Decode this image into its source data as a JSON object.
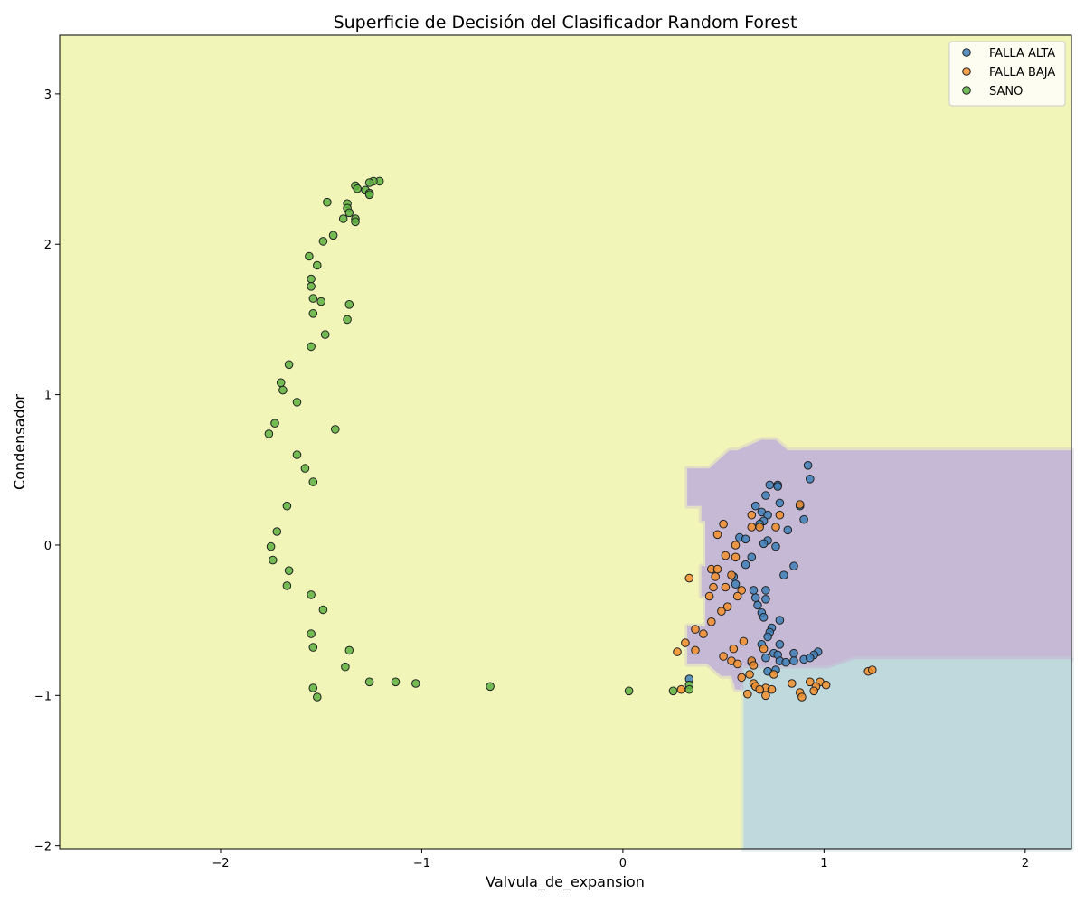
{
  "chart_data": {
    "type": "scatter",
    "title": "Superficie de Decisión del Clasificador Random Forest",
    "xlabel": "Valvula_de_expansion",
    "ylabel": "Condensador",
    "xlim": [
      -2.8,
      2.23
    ],
    "ylim": [
      -2.02,
      3.39
    ],
    "x_ticks": [
      -2,
      -1,
      0,
      1,
      2
    ],
    "y_ticks": [
      -2,
      -1,
      0,
      1,
      2,
      3
    ],
    "grid": false,
    "legend_position": "top-right",
    "background_region": {
      "class": "SANO",
      "color": "#f2f5b8"
    },
    "decision_regions": [
      {
        "class": "FALLA ALTA",
        "color": "#c6b9d6",
        "polygon": [
          [
            0.32,
            0.51
          ],
          [
            0.43,
            0.51
          ],
          [
            0.53,
            0.63
          ],
          [
            0.57,
            0.63
          ],
          [
            0.69,
            0.7
          ],
          [
            0.76,
            0.7
          ],
          [
            0.82,
            0.63
          ],
          [
            2.23,
            0.63
          ],
          [
            2.23,
            -0.76
          ],
          [
            1.15,
            -0.76
          ],
          [
            1.02,
            -0.84
          ],
          [
            0.64,
            -0.84
          ],
          [
            0.6,
            -0.96
          ],
          [
            0.56,
            -0.96
          ],
          [
            0.54,
            -0.87
          ],
          [
            0.49,
            -0.87
          ],
          [
            0.42,
            -0.79
          ],
          [
            0.32,
            -0.79
          ],
          [
            0.32,
            -0.54
          ],
          [
            0.41,
            -0.54
          ],
          [
            0.41,
            -0.34
          ],
          [
            0.39,
            -0.34
          ],
          [
            0.39,
            -0.14
          ],
          [
            0.41,
            -0.14
          ],
          [
            0.41,
            0.16
          ],
          [
            0.39,
            0.16
          ],
          [
            0.39,
            0.26
          ],
          [
            0.32,
            0.26
          ]
        ]
      },
      {
        "class": "FALLA BAJA",
        "color": "#bfd9dd",
        "polygon": [
          [
            0.6,
            -0.82
          ],
          [
            1.02,
            -0.82
          ],
          [
            1.15,
            -0.76
          ],
          [
            2.23,
            -0.76
          ],
          [
            2.23,
            -2.02
          ],
          [
            0.6,
            -2.02
          ]
        ]
      }
    ],
    "series": [
      {
        "name": "FALLA ALTA",
        "color": "#3e7fb8",
        "points": [
          [
            0.92,
            0.53
          ],
          [
            0.93,
            0.44
          ],
          [
            0.73,
            0.4
          ],
          [
            0.77,
            0.4
          ],
          [
            0.77,
            0.39
          ],
          [
            0.71,
            0.33
          ],
          [
            0.66,
            0.26
          ],
          [
            0.78,
            0.28
          ],
          [
            0.88,
            0.26
          ],
          [
            0.69,
            0.22
          ],
          [
            0.72,
            0.2
          ],
          [
            0.7,
            0.16
          ],
          [
            0.9,
            0.17
          ],
          [
            0.68,
            0.14
          ],
          [
            0.82,
            0.1
          ],
          [
            0.58,
            0.05
          ],
          [
            0.61,
            0.04
          ],
          [
            0.72,
            0.03
          ],
          [
            0.7,
            0.01
          ],
          [
            0.76,
            -0.01
          ],
          [
            0.64,
            -0.08
          ],
          [
            0.61,
            -0.13
          ],
          [
            0.85,
            -0.14
          ],
          [
            0.8,
            -0.2
          ],
          [
            0.55,
            -0.21
          ],
          [
            0.56,
            -0.26
          ],
          [
            0.65,
            -0.3
          ],
          [
            0.71,
            -0.3
          ],
          [
            0.66,
            -0.35
          ],
          [
            0.71,
            -0.36
          ],
          [
            0.67,
            -0.4
          ],
          [
            0.69,
            -0.45
          ],
          [
            0.7,
            -0.48
          ],
          [
            0.78,
            -0.5
          ],
          [
            0.74,
            -0.55
          ],
          [
            0.73,
            -0.58
          ],
          [
            0.72,
            -0.61
          ],
          [
            0.69,
            -0.66
          ],
          [
            0.78,
            -0.66
          ],
          [
            0.75,
            -0.72
          ],
          [
            0.77,
            -0.73
          ],
          [
            0.85,
            -0.72
          ],
          [
            0.97,
            -0.71
          ],
          [
            0.95,
            -0.73
          ],
          [
            0.71,
            -0.75
          ],
          [
            0.78,
            -0.77
          ],
          [
            0.81,
            -0.78
          ],
          [
            0.64,
            -0.78
          ],
          [
            0.85,
            -0.77
          ],
          [
            0.9,
            -0.76
          ],
          [
            0.93,
            -0.75
          ],
          [
            0.72,
            -0.84
          ],
          [
            0.76,
            -0.83
          ],
          [
            0.33,
            -0.89
          ]
        ]
      },
      {
        "name": "FALLA BAJA",
        "color": "#f28e2b",
        "points": [
          [
            0.88,
            0.27
          ],
          [
            0.64,
            0.2
          ],
          [
            0.78,
            0.2
          ],
          [
            0.5,
            0.14
          ],
          [
            0.64,
            0.12
          ],
          [
            0.68,
            0.12
          ],
          [
            0.76,
            0.12
          ],
          [
            0.47,
            0.07
          ],
          [
            0.56,
            0.0
          ],
          [
            0.51,
            -0.07
          ],
          [
            0.56,
            -0.08
          ],
          [
            0.44,
            -0.16
          ],
          [
            0.47,
            -0.16
          ],
          [
            0.33,
            -0.22
          ],
          [
            0.54,
            -0.2
          ],
          [
            0.46,
            -0.21
          ],
          [
            0.45,
            -0.28
          ],
          [
            0.51,
            -0.28
          ],
          [
            0.59,
            -0.3
          ],
          [
            0.43,
            -0.34
          ],
          [
            0.57,
            -0.34
          ],
          [
            0.52,
            -0.41
          ],
          [
            0.49,
            -0.44
          ],
          [
            0.44,
            -0.51
          ],
          [
            0.36,
            -0.56
          ],
          [
            0.4,
            -0.59
          ],
          [
            0.6,
            -0.64
          ],
          [
            0.31,
            -0.65
          ],
          [
            0.55,
            -0.69
          ],
          [
            0.7,
            -0.69
          ],
          [
            0.27,
            -0.71
          ],
          [
            0.36,
            -0.7
          ],
          [
            0.5,
            -0.74
          ],
          [
            0.54,
            -0.77
          ],
          [
            0.64,
            -0.77
          ],
          [
            0.57,
            -0.79
          ],
          [
            0.65,
            -0.8
          ],
          [
            0.63,
            -0.86
          ],
          [
            0.75,
            -0.86
          ],
          [
            0.59,
            -0.88
          ],
          [
            0.65,
            -0.92
          ],
          [
            0.66,
            -0.94
          ],
          [
            0.71,
            -0.95
          ],
          [
            0.68,
            -0.96
          ],
          [
            0.74,
            -0.96
          ],
          [
            0.84,
            -0.92
          ],
          [
            0.93,
            -0.91
          ],
          [
            0.98,
            -0.91
          ],
          [
            1.01,
            -0.93
          ],
          [
            0.96,
            -0.94
          ],
          [
            0.95,
            -0.97
          ],
          [
            0.88,
            -0.98
          ],
          [
            0.71,
            -1.0
          ],
          [
            0.62,
            -0.99
          ],
          [
            0.89,
            -1.01
          ],
          [
            0.29,
            -0.96
          ],
          [
            1.22,
            -0.84
          ],
          [
            1.24,
            -0.83
          ]
        ]
      },
      {
        "name": "SANO",
        "color": "#5db040",
        "points": [
          [
            -1.21,
            2.42
          ],
          [
            -1.24,
            2.42
          ],
          [
            -1.26,
            2.41
          ],
          [
            -1.33,
            2.39
          ],
          [
            -1.32,
            2.37
          ],
          [
            -1.28,
            2.36
          ],
          [
            -1.26,
            2.34
          ],
          [
            -1.26,
            2.33
          ],
          [
            -1.47,
            2.28
          ],
          [
            -1.37,
            2.27
          ],
          [
            -1.37,
            2.24
          ],
          [
            -1.36,
            2.21
          ],
          [
            -1.39,
            2.17
          ],
          [
            -1.33,
            2.17
          ],
          [
            -1.33,
            2.15
          ],
          [
            -1.44,
            2.06
          ],
          [
            -1.49,
            2.02
          ],
          [
            -1.56,
            1.92
          ],
          [
            -1.52,
            1.86
          ],
          [
            -1.55,
            1.77
          ],
          [
            -1.55,
            1.72
          ],
          [
            -1.54,
            1.64
          ],
          [
            -1.5,
            1.62
          ],
          [
            -1.36,
            1.6
          ],
          [
            -1.54,
            1.54
          ],
          [
            -1.37,
            1.5
          ],
          [
            -1.48,
            1.4
          ],
          [
            -1.55,
            1.32
          ],
          [
            -1.66,
            1.2
          ],
          [
            -1.7,
            1.08
          ],
          [
            -1.69,
            1.03
          ],
          [
            -1.62,
            0.95
          ],
          [
            -1.73,
            0.81
          ],
          [
            -1.76,
            0.74
          ],
          [
            -1.43,
            0.77
          ],
          [
            -1.62,
            0.6
          ],
          [
            -1.58,
            0.51
          ],
          [
            -1.54,
            0.42
          ],
          [
            -1.67,
            0.26
          ],
          [
            -1.72,
            0.09
          ],
          [
            -1.75,
            -0.01
          ],
          [
            -1.74,
            -0.1
          ],
          [
            -1.66,
            -0.17
          ],
          [
            -1.67,
            -0.27
          ],
          [
            -1.55,
            -0.33
          ],
          [
            -1.49,
            -0.43
          ],
          [
            -1.55,
            -0.59
          ],
          [
            -1.54,
            -0.68
          ],
          [
            -1.36,
            -0.7
          ],
          [
            -1.38,
            -0.81
          ],
          [
            -1.26,
            -0.91
          ],
          [
            -1.13,
            -0.91
          ],
          [
            -1.03,
            -0.92
          ],
          [
            -1.54,
            -0.95
          ],
          [
            -1.52,
            -1.01
          ],
          [
            -0.66,
            -0.94
          ],
          [
            0.03,
            -0.97
          ],
          [
            0.25,
            -0.97
          ],
          [
            0.33,
            -0.93
          ],
          [
            0.33,
            -0.96
          ]
        ]
      }
    ]
  }
}
